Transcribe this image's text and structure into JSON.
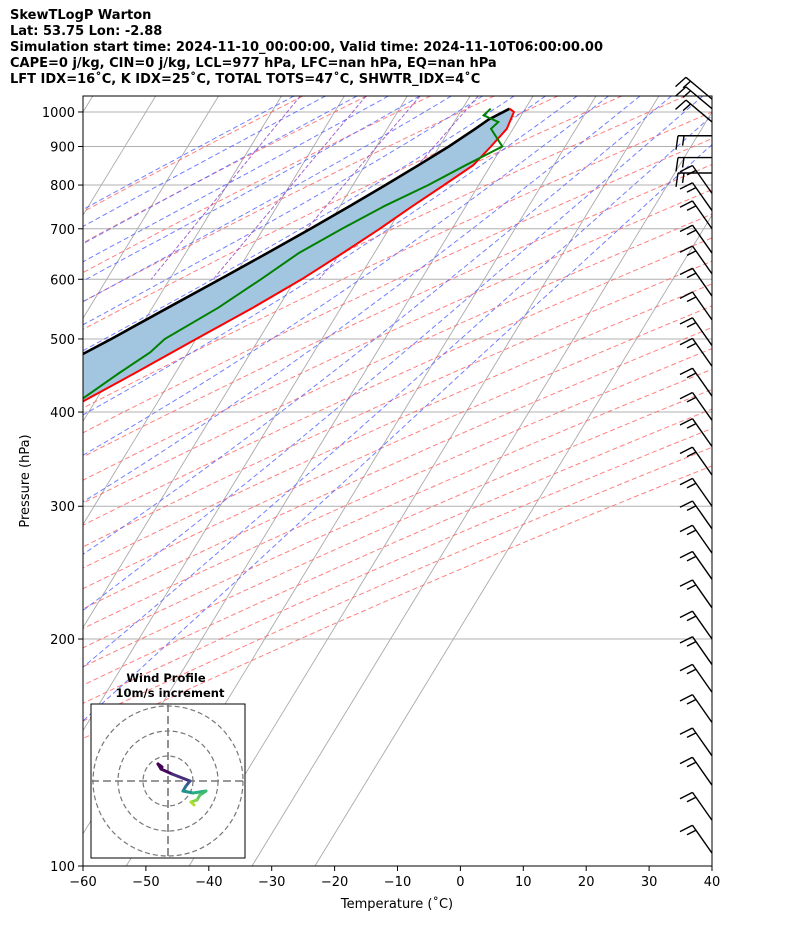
{
  "header": {
    "line1": "SkewTLogP Warton",
    "line2": "Lat: 53.75   Lon: -2.88",
    "line3": "Simulation start time: 2024-11-10_00:00:00, Valid time: 2024-11-10T06:00:00.00",
    "line4": "CAPE=0 j/kg, CIN=0 j/kg, LCL=977 hPa, LFC=nan hPa, EQ=nan hPa",
    "line5": "LFT IDX=16˚C, K IDX=25˚C, TOTAL TOTS=47˚C, SHWTR_IDX=4˚C"
  },
  "chart_data": {
    "type": "line",
    "subtype": "skew-t log-p",
    "xlabel": "Temperature (˚C)",
    "ylabel": "Pressure (hPa)",
    "xlim": [
      -60,
      40
    ],
    "ylim": [
      1050,
      100
    ],
    "y_scale": "log",
    "x_ticks": [
      -60,
      -50,
      -40,
      -30,
      -20,
      -10,
      0,
      10,
      20,
      30,
      40
    ],
    "x_tick_labels": [
      "−60",
      "−50",
      "−40",
      "−30",
      "−20",
      "−10",
      "0",
      "10",
      "20",
      "30",
      "40"
    ],
    "y_ticks": [
      1000,
      900,
      800,
      700,
      600,
      500,
      400,
      300,
      200,
      100
    ],
    "y_tick_labels": [
      "1000",
      "900",
      "800",
      "700",
      "600",
      "500",
      "400",
      "300",
      "200",
      "100"
    ],
    "grid": true,
    "colors": {
      "temperature": "#ff0000",
      "dewpoint": "#008000",
      "parcel": "#000000",
      "shade": "#a3c6e0",
      "dry_adiabat": "#ff6060",
      "moist_adiabat": "#5060ff",
      "mixing_ratio": "#9040c0",
      "isotherm": "#aaaaaa"
    },
    "series": [
      {
        "key": "temperature",
        "pressure": [
          1010,
          1000,
          950,
          900,
          850,
          800,
          750,
          700,
          650,
          600,
          550,
          500,
          450,
          400,
          350,
          300,
          270,
          250,
          230,
          210,
          200,
          190,
          170,
          150,
          130,
          115,
          100
        ],
        "values": [
          7.5,
          8.5,
          9.0,
          8.2,
          7.2,
          4.5,
          1.5,
          -1.5,
          -5.0,
          -9.0,
          -14.0,
          -20.0,
          -26.5,
          -34.0,
          -42.0,
          -50.0,
          -54.0,
          -57.0,
          -56.0,
          -55.0,
          -56.0,
          -55.5,
          -51.5,
          -48.0,
          -46.0,
          -44.0,
          -43.0
        ]
      },
      {
        "key": "dewpoint",
        "pressure": [
          1010,
          990,
          970,
          950,
          900,
          850,
          800,
          750,
          700,
          650,
          600,
          550,
          500,
          480,
          450,
          400,
          350,
          320,
          300,
          270,
          240,
          220,
          200,
          180,
          160,
          150,
          130,
          100
        ],
        "values": [
          4.5,
          4.0,
          7.0,
          6.5,
          10.0,
          6.0,
          2.0,
          -3.0,
          -7.5,
          -12.0,
          -15.5,
          -19.5,
          -25.0,
          -26.0,
          -29.0,
          -34.0,
          -43.0,
          -44.0,
          -48.0,
          -54.0,
          -56.0,
          -58.0,
          -62.0,
          -68.0,
          -74.0,
          -72.0,
          -64.0,
          -52.0
        ]
      },
      {
        "key": "parcel",
        "pressure": [
          1010,
          977,
          950,
          900,
          850,
          800,
          750,
          700,
          650,
          600,
          550,
          500,
          450,
          400,
          350,
          300,
          250,
          200,
          150,
          120,
          100
        ],
        "values": [
          7.5,
          5.2,
          4.0,
          1.5,
          -1.5,
          -4.8,
          -8.5,
          -12.5,
          -17.0,
          -22.0,
          -27.5,
          -33.5,
          -40.5,
          -48.0,
          -57.0,
          -67.0,
          -78.5,
          -92.0,
          -108.0,
          -120.0,
          -130.0
        ]
      }
    ],
    "wind_barbs_note": "wind barbs at right edge",
    "inset": {
      "title": "Wind Profile",
      "subtitle": "10m/s increment"
    }
  }
}
